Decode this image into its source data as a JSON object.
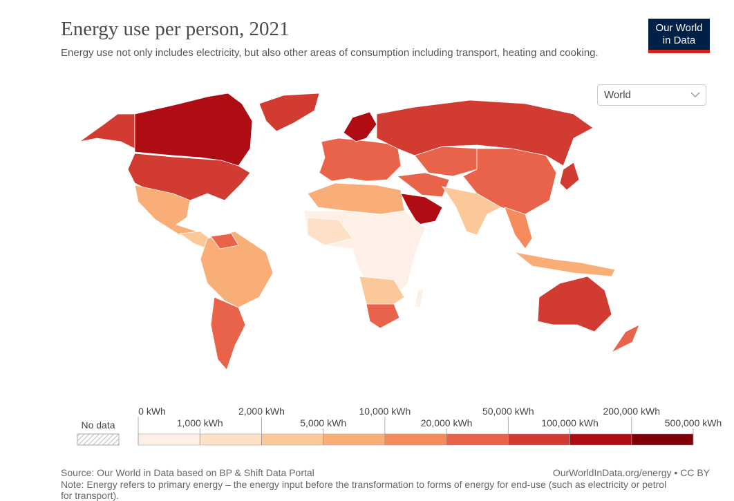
{
  "header": {
    "title": "Energy use per person, 2021",
    "subtitle": "Energy use not only includes electricity, but also other areas of consumption including transport, heating and cooking.",
    "logo": [
      "Our World",
      "in Data"
    ]
  },
  "selector": {
    "value": "World"
  },
  "legend": {
    "no_data": "No data",
    "ticks": [
      "0 kWh",
      "1,000 kWh",
      "2,000 kWh",
      "5,000 kWh",
      "10,000 kWh",
      "20,000 kWh",
      "50,000 kWh",
      "100,000 kWh",
      "200,000 kWh",
      "500,000 kWh"
    ],
    "colors": [
      "#fef0e6",
      "#fde0c5",
      "#fbc999",
      "#f9ae78",
      "#f38c5a",
      "#e8634a",
      "#d13b31",
      "#b00c13",
      "#7d0008"
    ]
  },
  "footer": {
    "source": "Source: Our World in Data based on BP & Shift Data Portal",
    "link": "OurWorldInData.org/energy • CC BY",
    "note": "Note: Energy refers to primary energy – the energy input before the transformation to forms of energy for end-use (such as electricity or petrol for transport)."
  }
}
